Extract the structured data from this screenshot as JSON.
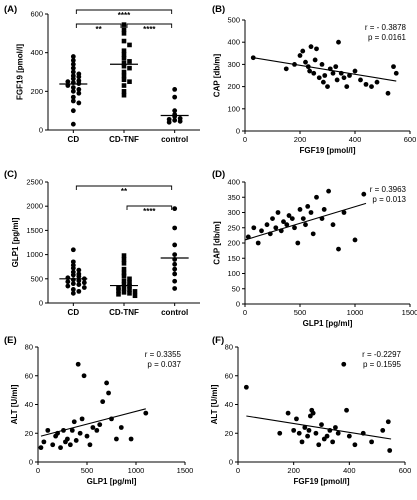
{
  "chart_data": [
    {
      "panel_label": "(A)",
      "type": "scatter",
      "categories": [
        "CD",
        "CD-TNF",
        "control"
      ],
      "ylabel": "FGF19 [pmol/l]",
      "ylim": [
        0,
        600
      ],
      "yticks": [
        0,
        200,
        400,
        600
      ],
      "groups": [
        {
          "name": "CD",
          "marker": "circle",
          "mean": 238,
          "values": [
            380,
            360,
            340,
            320,
            300,
            290,
            280,
            275,
            265,
            255,
            250,
            245,
            240,
            230,
            220,
            210,
            200,
            190,
            170,
            150,
            140,
            100,
            30
          ]
        },
        {
          "name": "CD-TNF",
          "marker": "square",
          "mean": 340,
          "values": [
            545,
            520,
            500,
            460,
            440,
            410,
            390,
            370,
            355,
            345,
            330,
            320,
            300,
            280,
            260,
            250,
            230,
            200,
            180
          ]
        },
        {
          "name": "control",
          "marker": "circle",
          "mean": 75,
          "values": [
            210,
            170,
            100,
            80,
            70,
            60,
            55,
            50,
            45,
            40
          ]
        }
      ],
      "annotations": [
        {
          "text": "****",
          "from": 0,
          "to": 2
        },
        {
          "text": "**",
          "from": 0,
          "to": 1
        },
        {
          "text": "****",
          "from": 1,
          "to": 2
        }
      ]
    },
    {
      "panel_label": "(B)",
      "type": "scatter",
      "xlabel": "FGF19 [pmol/l]",
      "ylabel": "CAP [db/m]",
      "xlim": [
        0,
        600
      ],
      "xticks": [
        0,
        200,
        400,
        600
      ],
      "ylim": [
        0,
        500
      ],
      "yticks": [
        0,
        100,
        200,
        300,
        400,
        500
      ],
      "stat_r": "r = - 0.3878",
      "stat_p": "p = 0.0161",
      "fit": [
        [
          30,
          330
        ],
        [
          550,
          225
        ]
      ],
      "points": [
        [
          30,
          330
        ],
        [
          150,
          280
        ],
        [
          180,
          300
        ],
        [
          200,
          340
        ],
        [
          210,
          360
        ],
        [
          220,
          310
        ],
        [
          230,
          290
        ],
        [
          235,
          270
        ],
        [
          240,
          380
        ],
        [
          250,
          260
        ],
        [
          255,
          320
        ],
        [
          260,
          370
        ],
        [
          270,
          240
        ],
        [
          280,
          300
        ],
        [
          285,
          220
        ],
        [
          290,
          250
        ],
        [
          300,
          200
        ],
        [
          310,
          280
        ],
        [
          320,
          260
        ],
        [
          330,
          290
        ],
        [
          335,
          230
        ],
        [
          340,
          400
        ],
        [
          350,
          260
        ],
        [
          360,
          240
        ],
        [
          370,
          200
        ],
        [
          380,
          250
        ],
        [
          400,
          270
        ],
        [
          420,
          230
        ],
        [
          440,
          210
        ],
        [
          460,
          200
        ],
        [
          480,
          220
        ],
        [
          520,
          170
        ],
        [
          540,
          290
        ],
        [
          550,
          260
        ]
      ]
    },
    {
      "panel_label": "(C)",
      "type": "scatter",
      "categories": [
        "CD",
        "CD-TNF",
        "control"
      ],
      "ylabel": "GLP1 [pg/ml]",
      "ylim": [
        0,
        2500
      ],
      "yticks": [
        0,
        500,
        1000,
        1500,
        2000,
        2500
      ],
      "groups": [
        {
          "name": "CD",
          "marker": "circle",
          "mean": 500,
          "values": [
            1100,
            850,
            780,
            720,
            680,
            640,
            600,
            580,
            550,
            520,
            500,
            480,
            460,
            440,
            420,
            400,
            380,
            350,
            320,
            280,
            240,
            200
          ]
        },
        {
          "name": "CD-TNF",
          "marker": "square",
          "mean": 360,
          "values": [
            980,
            900,
            820,
            700,
            620,
            560,
            500,
            460,
            420,
            380,
            350,
            320,
            300,
            280,
            260,
            240,
            220,
            200,
            180,
            150
          ]
        },
        {
          "name": "control",
          "marker": "circle",
          "mean": 930,
          "values": [
            1950,
            1550,
            1200,
            1000,
            900,
            800,
            700,
            600,
            450,
            300
          ]
        }
      ],
      "annotations": [
        {
          "text": "**",
          "from": 0,
          "to": 2
        },
        {
          "text": "****",
          "from": 1,
          "to": 2
        }
      ]
    },
    {
      "panel_label": "(D)",
      "type": "scatter",
      "xlabel": "GLP1 [pg/ml]",
      "ylabel": "CAP [db/m]",
      "xlim": [
        0,
        1500
      ],
      "xticks": [
        0,
        500,
        1000,
        1500
      ],
      "ylim": [
        0,
        400
      ],
      "yticks": [
        0,
        50,
        100,
        150,
        200,
        250,
        300,
        350,
        400
      ],
      "stat_r": "r = 0.3963",
      "stat_p": "p = 0.013",
      "fit": [
        [
          0,
          210
        ],
        [
          1100,
          330
        ]
      ],
      "points": [
        [
          30,
          220
        ],
        [
          80,
          250
        ],
        [
          120,
          200
        ],
        [
          150,
          240
        ],
        [
          200,
          260
        ],
        [
          230,
          230
        ],
        [
          250,
          280
        ],
        [
          280,
          250
        ],
        [
          300,
          300
        ],
        [
          330,
          240
        ],
        [
          350,
          270
        ],
        [
          380,
          260
        ],
        [
          400,
          290
        ],
        [
          430,
          280
        ],
        [
          450,
          250
        ],
        [
          480,
          200
        ],
        [
          500,
          310
        ],
        [
          530,
          280
        ],
        [
          550,
          260
        ],
        [
          570,
          320
        ],
        [
          600,
          300
        ],
        [
          620,
          230
        ],
        [
          650,
          350
        ],
        [
          700,
          280
        ],
        [
          720,
          310
        ],
        [
          760,
          370
        ],
        [
          800,
          260
        ],
        [
          850,
          180
        ],
        [
          900,
          300
        ],
        [
          1000,
          210
        ],
        [
          1080,
          360
        ]
      ]
    },
    {
      "panel_label": "(E)",
      "type": "scatter",
      "xlabel": "GLP1 [pg/ml]",
      "ylabel": "ALT [U/ml]",
      "xlim": [
        0,
        1500
      ],
      "xticks": [
        0,
        500,
        1000,
        1500
      ],
      "ylim": [
        0,
        80
      ],
      "yticks": [
        0,
        20,
        40,
        60,
        80
      ],
      "stat_r": "r = 0.3355",
      "stat_p": "p = 0.037",
      "fit": [
        [
          30,
          18
        ],
        [
          1100,
          37
        ]
      ],
      "points": [
        [
          30,
          10
        ],
        [
          60,
          14
        ],
        [
          100,
          22
        ],
        [
          150,
          12
        ],
        [
          180,
          18
        ],
        [
          200,
          20
        ],
        [
          230,
          10
        ],
        [
          260,
          22
        ],
        [
          280,
          14
        ],
        [
          300,
          16
        ],
        [
          330,
          12
        ],
        [
          350,
          22
        ],
        [
          370,
          28
        ],
        [
          390,
          15
        ],
        [
          410,
          68
        ],
        [
          430,
          20
        ],
        [
          450,
          30
        ],
        [
          470,
          60
        ],
        [
          500,
          18
        ],
        [
          530,
          12
        ],
        [
          560,
          24
        ],
        [
          600,
          22
        ],
        [
          630,
          26
        ],
        [
          660,
          42
        ],
        [
          700,
          55
        ],
        [
          720,
          48
        ],
        [
          750,
          30
        ],
        [
          800,
          16
        ],
        [
          850,
          24
        ],
        [
          950,
          16
        ],
        [
          1100,
          34
        ]
      ]
    },
    {
      "panel_label": "(F)",
      "type": "scatter",
      "xlabel": "FGF19 [pmol/l]",
      "ylabel": "ALT [U/ml]",
      "xlim": [
        0,
        600
      ],
      "xticks": [
        0,
        200,
        400,
        600
      ],
      "ylim": [
        0,
        80
      ],
      "yticks": [
        0,
        20,
        40,
        60,
        80
      ],
      "stat_r": "r = -0.2297",
      "stat_p": "p = 0.1595",
      "fit": [
        [
          30,
          32
        ],
        [
          550,
          16
        ]
      ],
      "points": [
        [
          30,
          52
        ],
        [
          150,
          20
        ],
        [
          180,
          34
        ],
        [
          200,
          22
        ],
        [
          210,
          30
        ],
        [
          220,
          20
        ],
        [
          230,
          14
        ],
        [
          240,
          24
        ],
        [
          250,
          18
        ],
        [
          255,
          22
        ],
        [
          260,
          32
        ],
        [
          265,
          36
        ],
        [
          270,
          34
        ],
        [
          280,
          20
        ],
        [
          290,
          12
        ],
        [
          300,
          26
        ],
        [
          310,
          16
        ],
        [
          320,
          18
        ],
        [
          330,
          22
        ],
        [
          340,
          14
        ],
        [
          350,
          24
        ],
        [
          360,
          20
        ],
        [
          380,
          68
        ],
        [
          390,
          36
        ],
        [
          400,
          18
        ],
        [
          420,
          12
        ],
        [
          450,
          20
        ],
        [
          480,
          14
        ],
        [
          520,
          22
        ],
        [
          540,
          28
        ],
        [
          545,
          8
        ]
      ]
    }
  ]
}
